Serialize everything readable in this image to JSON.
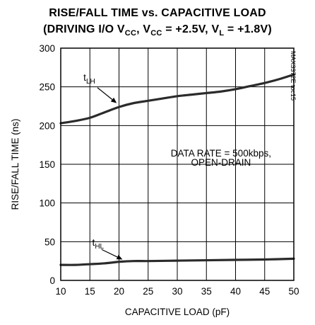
{
  "title": {
    "line1": "RISE/FALL TIME vs. CAPACITIVE LOAD",
    "line2": "(DRIVING I/O VCC, VCC = +2.5V, VL = +1.8V)"
  },
  "part_label": "MAX3372E toc15",
  "annotation": {
    "line1": "DATA RATE = 500kbps,",
    "line2": "OPEN-DRAIN"
  },
  "chart_data": {
    "type": "line",
    "xlabel": "CAPACITIVE LOAD (pF)",
    "ylabel": "RISE/FALL TIME (ns)",
    "xlim": [
      10,
      50
    ],
    "ylim": [
      0,
      300
    ],
    "xticks": [
      10,
      15,
      20,
      25,
      30,
      35,
      40,
      45,
      50
    ],
    "yticks": [
      0,
      50,
      100,
      150,
      200,
      250,
      300
    ],
    "grid": true,
    "line_color": "#2b2b2b",
    "series": [
      {
        "name": "tLH",
        "x": [
          10,
          12.5,
          15,
          17.5,
          20,
          22.5,
          25,
          27.5,
          30,
          32.5,
          35,
          37.5,
          40,
          42.5,
          45,
          47.5,
          50
        ],
        "y": [
          203,
          206,
          210,
          217,
          224,
          229,
          232,
          235,
          238,
          240,
          242,
          244,
          247,
          251,
          255,
          260,
          266
        ]
      },
      {
        "name": "tHL",
        "x": [
          10,
          12.5,
          15,
          17.5,
          20,
          22.5,
          25,
          30,
          35,
          40,
          45,
          50
        ],
        "y": [
          20,
          20,
          21,
          22,
          24,
          25,
          25,
          25.5,
          26,
          26.5,
          27,
          28
        ]
      }
    ]
  }
}
